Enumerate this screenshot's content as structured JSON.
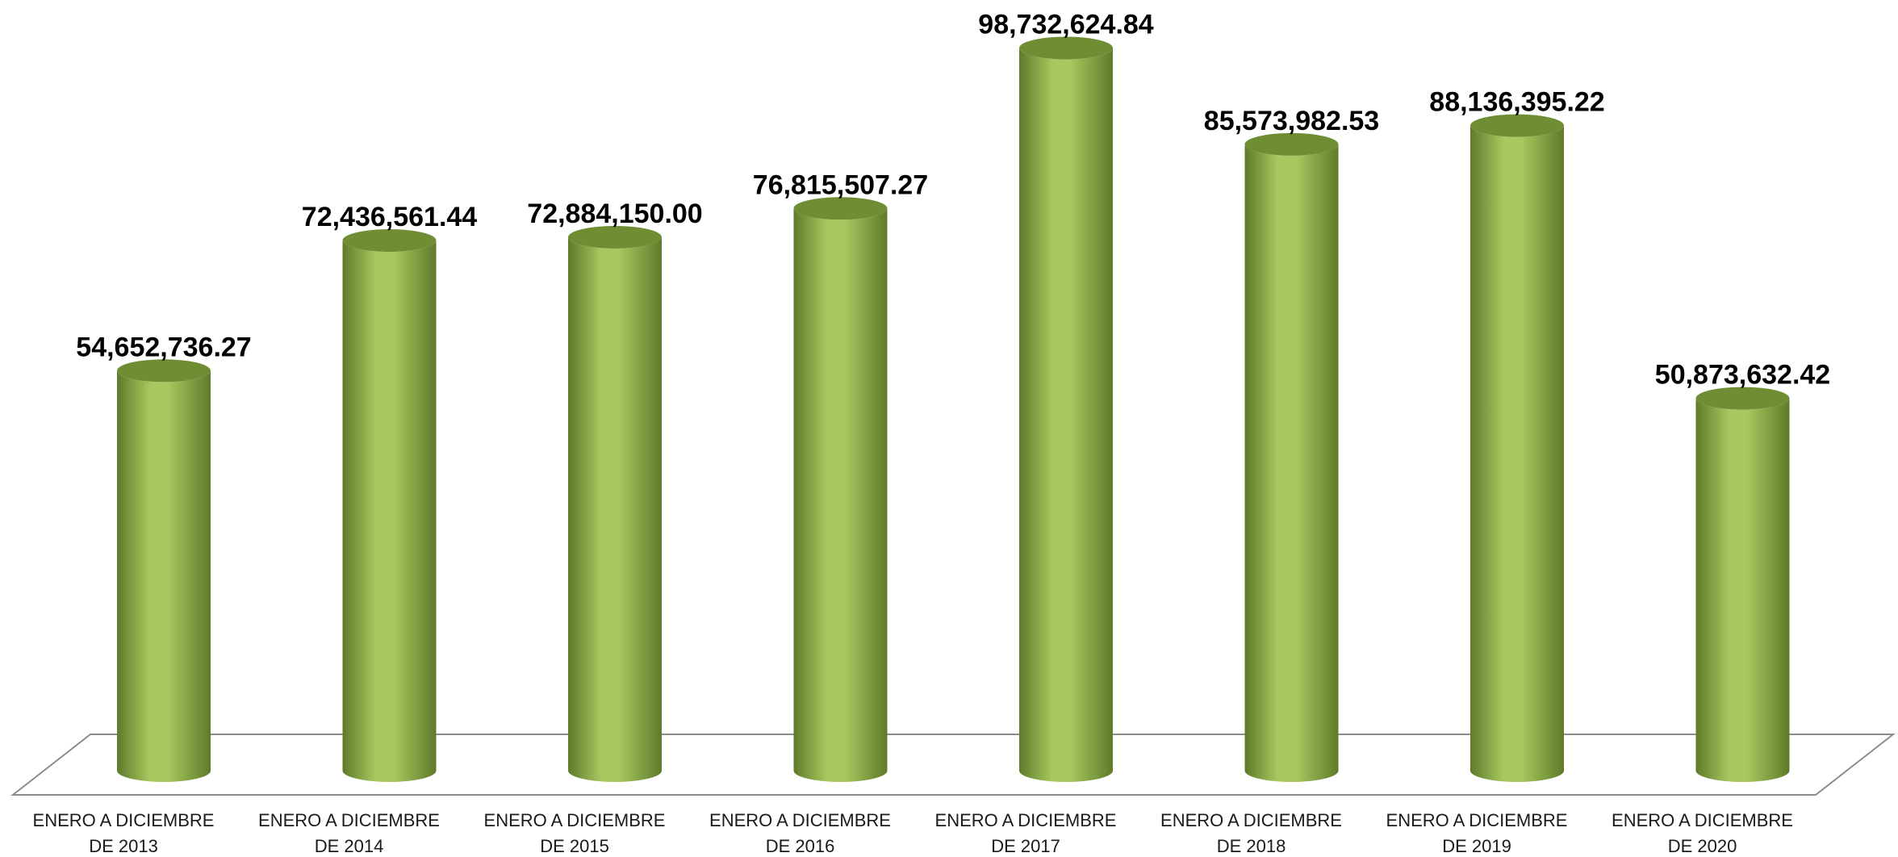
{
  "chart_data": {
    "type": "bar",
    "style": "3d-cylinder",
    "categories": [
      [
        "ENERO A DICIEMBRE",
        "DE 2013"
      ],
      [
        "ENERO A DICIEMBRE",
        "DE 2014"
      ],
      [
        "ENERO A DICIEMBRE",
        "DE 2015"
      ],
      [
        "ENERO A DICIEMBRE",
        "DE 2016"
      ],
      [
        "ENERO A DICIEMBRE",
        "DE 2017"
      ],
      [
        "ENERO A DICIEMBRE",
        "DE 2018"
      ],
      [
        "ENERO A DICIEMBRE",
        "DE 2019"
      ],
      [
        "ENERO A DICIEMBRE",
        "DE 2020"
      ]
    ],
    "values": [
      54652736.27,
      72436561.44,
      72884150.0,
      76815507.27,
      98732624.84,
      85573982.53,
      88136395.22,
      50873632.42
    ],
    "data_labels": [
      "54,652,736.27",
      "72,436,561.44",
      "72,884,150.00",
      "76,815,507.27",
      "98,732,624.84",
      "85,573,982.53",
      "88,136,395.22",
      "50,873,632.42"
    ],
    "ylim": [
      0,
      100000000
    ],
    "grid": false,
    "legend": "none",
    "colors": {
      "bar_light": "#a6c85e",
      "bar_mid": "#8fb04a",
      "bar_dark": "#5f7a2a",
      "top_cap": "#6f8d33",
      "floor_line": "#8c8c8c"
    }
  }
}
